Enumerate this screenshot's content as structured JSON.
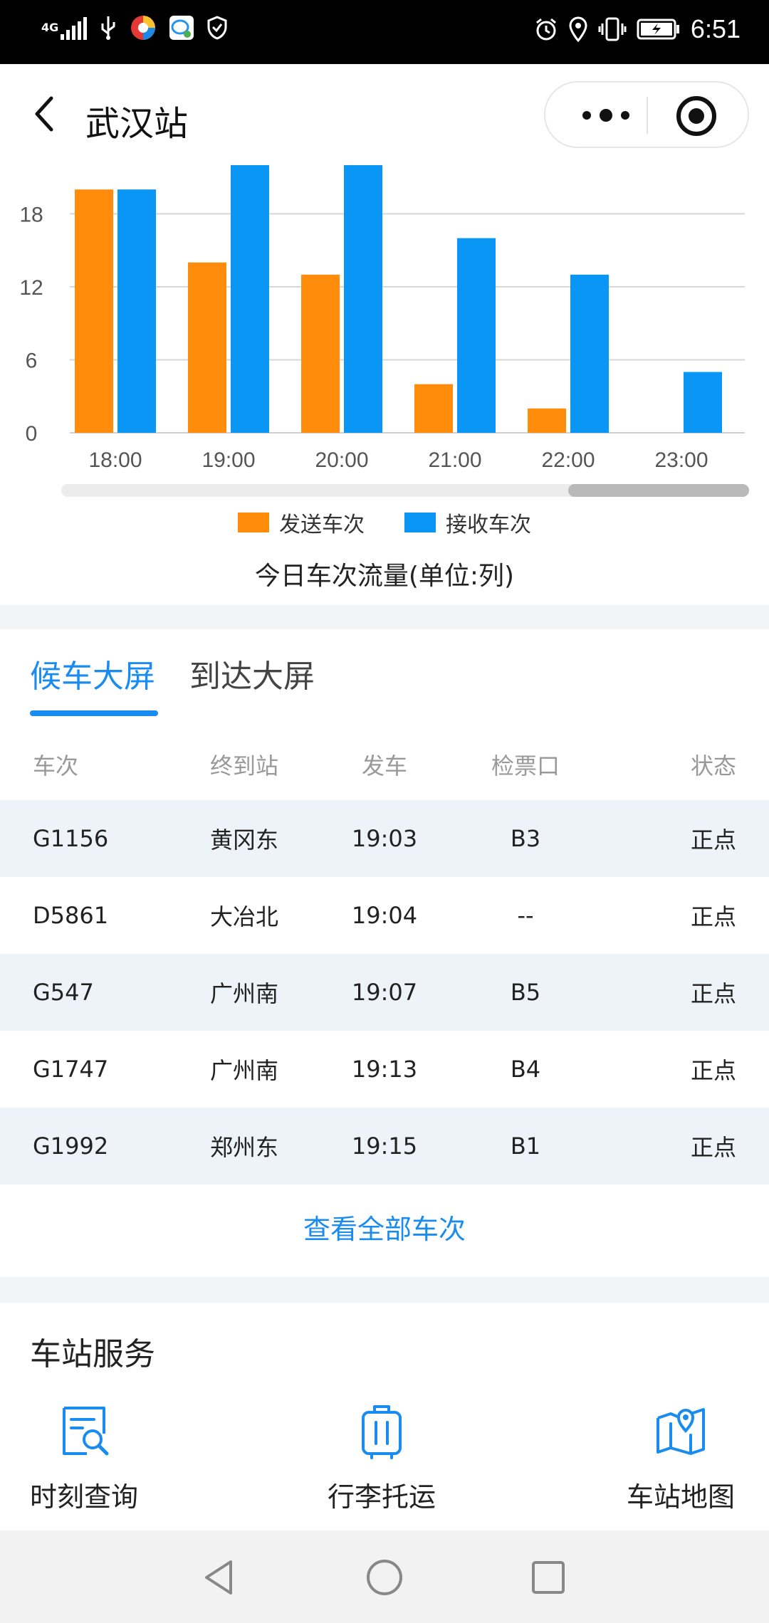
{
  "status_bar": {
    "network": "4G",
    "time": "6:51"
  },
  "header": {
    "title": "武汉站"
  },
  "chart_data": {
    "type": "bar",
    "title": "今日车次流量(单位:列)",
    "categories": [
      "18:00",
      "19:00",
      "20:00",
      "21:00",
      "22:00",
      "23:00"
    ],
    "series": [
      {
        "name": "发送车次",
        "color": "#ff8c0a",
        "values": [
          20,
          14,
          13,
          4,
          2,
          0
        ]
      },
      {
        "name": "接收车次",
        "color": "#0a96f5",
        "values": [
          20,
          22,
          22,
          16,
          13,
          5
        ]
      }
    ],
    "y_ticks": [
      0,
      6,
      12,
      18
    ],
    "ylim": [
      0,
      22
    ],
    "xlabel": "",
    "ylabel": "",
    "grid": true,
    "legend": "bottom"
  },
  "board": {
    "tabs": [
      {
        "label": "候车大屏",
        "active": true
      },
      {
        "label": "到达大屏",
        "active": false
      }
    ],
    "columns": [
      "车次",
      "终到站",
      "发车",
      "检票口",
      "状态"
    ],
    "rows": [
      {
        "train": "G1156",
        "destination": "黄冈东",
        "departure": "19:03",
        "gate": "B3",
        "status": "正点"
      },
      {
        "train": "D5861",
        "destination": "大冶北",
        "departure": "19:04",
        "gate": "--",
        "status": "正点"
      },
      {
        "train": "G547",
        "destination": "广州南",
        "departure": "19:07",
        "gate": "B5",
        "status": "正点"
      },
      {
        "train": "G1747",
        "destination": "广州南",
        "departure": "19:13",
        "gate": "B4",
        "status": "正点"
      },
      {
        "train": "G1992",
        "destination": "郑州东",
        "departure": "19:15",
        "gate": "B1",
        "status": "正点"
      }
    ],
    "view_all": "查看全部车次"
  },
  "services": {
    "title": "车站服务",
    "items": [
      {
        "label": "时刻查询",
        "icon": "schedule-search-icon"
      },
      {
        "label": "行李托运",
        "icon": "luggage-icon"
      },
      {
        "label": "车站地图",
        "icon": "map-icon"
      }
    ]
  },
  "colors": {
    "accent": "#1a8cf0",
    "send": "#ff8c0a",
    "receive": "#0a96f5",
    "stripe": "#eef3f9"
  }
}
